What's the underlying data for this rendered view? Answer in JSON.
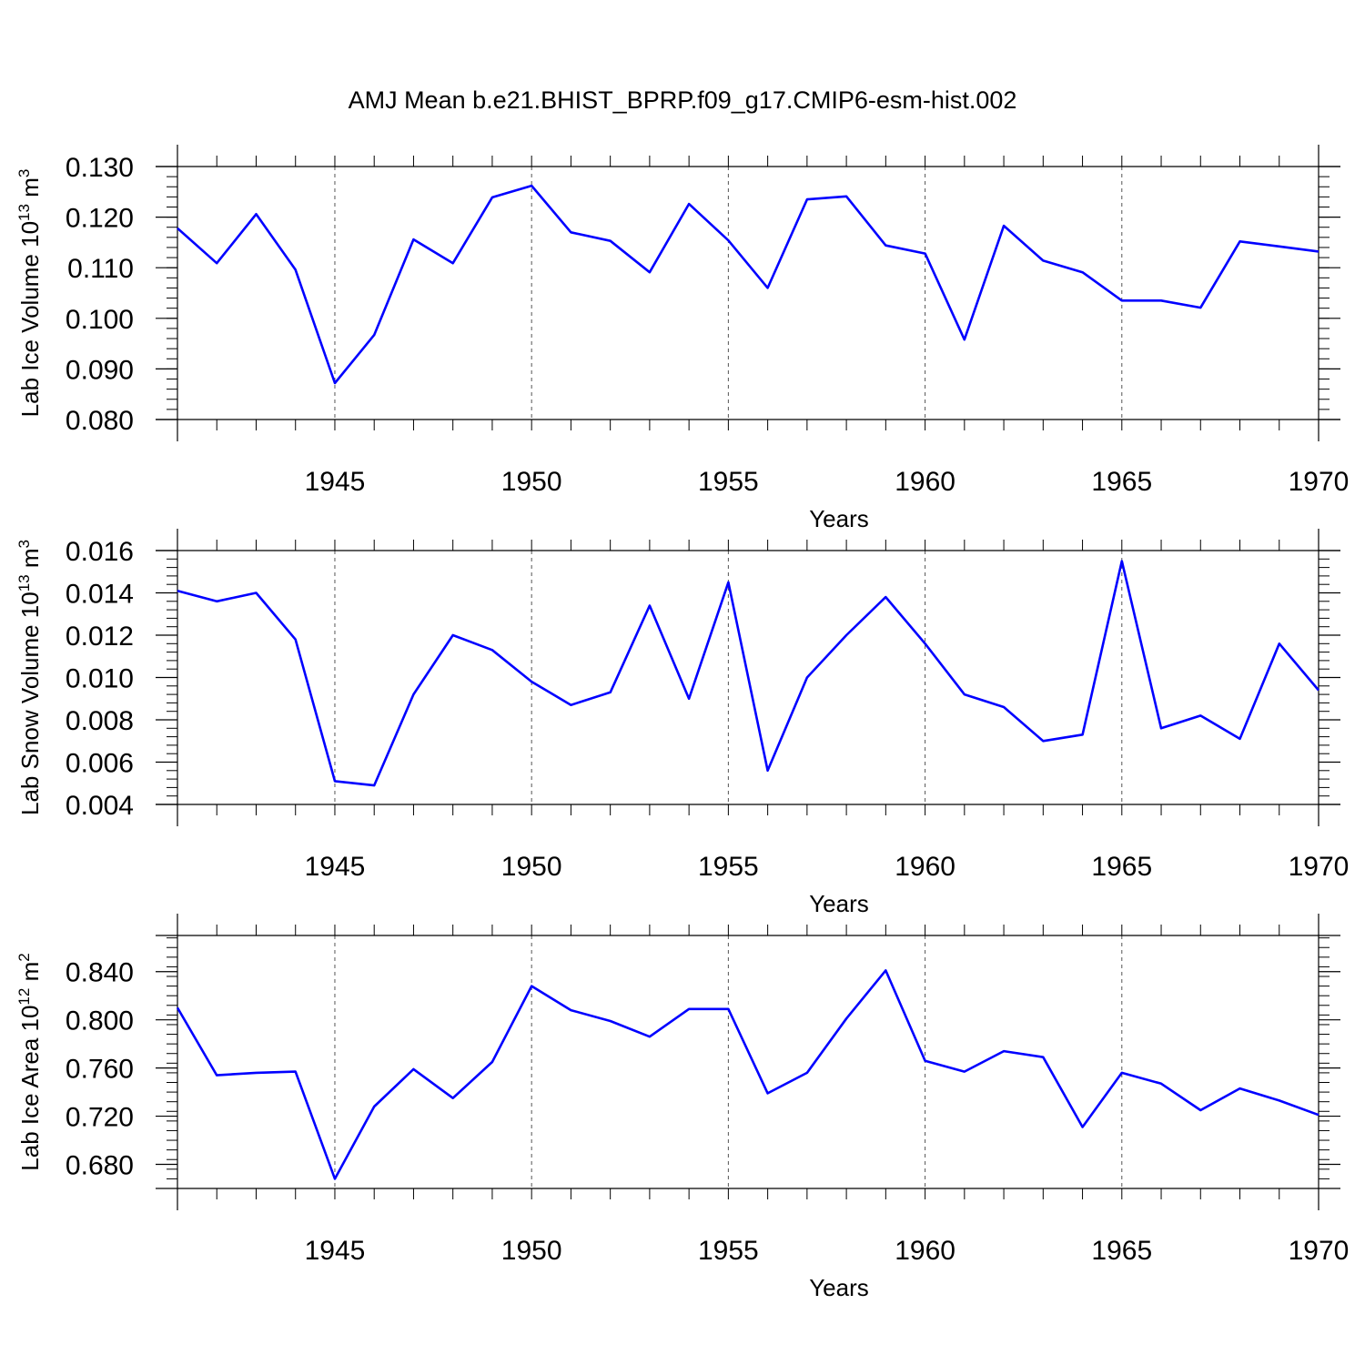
{
  "title": "AMJ Mean b.e21.BHIST_BPRP.f09_g17.CMIP6-esm-hist.002",
  "line_color": "#0000ff",
  "chart_data": [
    {
      "type": "line",
      "ylabel_main": "Lab Ice Volume 10",
      "ylabel_exp": "13",
      "ylabel_unit": " m",
      "ylabel_unit_exp": "3",
      "xlabel": "Years",
      "xlim": [
        1941,
        1970
      ],
      "ylim": [
        0.08,
        0.13
      ],
      "yticks": [
        0.08,
        0.09,
        0.1,
        0.11,
        0.12,
        0.13
      ],
      "ytick_labels": [
        "0.080",
        "0.090",
        "0.100",
        "0.110",
        "0.120",
        "0.130"
      ],
      "yminor_step": 0.002,
      "xticks": [
        1945,
        1950,
        1955,
        1960,
        1965,
        1970
      ],
      "xtick_labels": [
        "1945",
        "1950",
        "1955",
        "1960",
        "1965",
        "1970"
      ],
      "x": [
        1941,
        1942,
        1943,
        1944,
        1945,
        1946,
        1947,
        1948,
        1949,
        1950,
        1951,
        1952,
        1953,
        1954,
        1955,
        1956,
        1957,
        1958,
        1959,
        1960,
        1961,
        1962,
        1963,
        1964,
        1965,
        1966,
        1967,
        1968,
        1969,
        1970
      ],
      "y": [
        0.1178,
        0.1109,
        0.1206,
        0.1096,
        0.0872,
        0.0967,
        0.1156,
        0.1109,
        0.1239,
        0.1262,
        0.117,
        0.1153,
        0.1091,
        0.1226,
        0.1154,
        0.106,
        0.1235,
        0.1241,
        0.1144,
        0.1128,
        0.0958,
        0.1183,
        0.1114,
        0.1091,
        0.1035,
        0.1035,
        0.1021,
        0.1152,
        0.1142,
        0.1132
      ]
    },
    {
      "type": "line",
      "ylabel_main": "Lab Snow Volume 10",
      "ylabel_exp": "13",
      "ylabel_unit": " m",
      "ylabel_unit_exp": "3",
      "xlabel": "Years",
      "xlim": [
        1941,
        1970
      ],
      "ylim": [
        0.004,
        0.016
      ],
      "yticks": [
        0.004,
        0.006,
        0.008,
        0.01,
        0.012,
        0.014,
        0.016
      ],
      "ytick_labels": [
        "0.004",
        "0.006",
        "0.008",
        "0.010",
        "0.012",
        "0.014",
        "0.016"
      ],
      "yminor_step": 0.0004,
      "xticks": [
        1945,
        1950,
        1955,
        1960,
        1965,
        1970
      ],
      "xtick_labels": [
        "1945",
        "1950",
        "1955",
        "1960",
        "1965",
        "1970"
      ],
      "x": [
        1941,
        1942,
        1943,
        1944,
        1945,
        1946,
        1947,
        1948,
        1949,
        1950,
        1951,
        1952,
        1953,
        1954,
        1955,
        1956,
        1957,
        1958,
        1959,
        1960,
        1961,
        1962,
        1963,
        1964,
        1965,
        1966,
        1967,
        1968,
        1969,
        1970
      ],
      "y": [
        0.0141,
        0.0136,
        0.014,
        0.0118,
        0.0051,
        0.0049,
        0.0092,
        0.012,
        0.0113,
        0.0098,
        0.0087,
        0.0093,
        0.0134,
        0.009,
        0.0145,
        0.0056,
        0.01,
        0.012,
        0.0138,
        0.0116,
        0.0092,
        0.0086,
        0.007,
        0.0073,
        0.0155,
        0.0076,
        0.0082,
        0.0071,
        0.0116,
        0.0094
      ]
    },
    {
      "type": "line",
      "ylabel_main": "Lab Ice Area 10",
      "ylabel_exp": "12",
      "ylabel_unit": " m",
      "ylabel_unit_exp": "2",
      "xlabel": "Years",
      "xlim": [
        1941,
        1970
      ],
      "ylim": [
        0.66,
        0.87
      ],
      "yticks": [
        0.68,
        0.72,
        0.76,
        0.8,
        0.84
      ],
      "ytick_labels": [
        "0.680",
        "0.720",
        "0.760",
        "0.800",
        "0.840"
      ],
      "yminor_step": 0.008,
      "xticks": [
        1945,
        1950,
        1955,
        1960,
        1965,
        1970
      ],
      "xtick_labels": [
        "1945",
        "1950",
        "1955",
        "1960",
        "1965",
        "1970"
      ],
      "x": [
        1941,
        1942,
        1943,
        1944,
        1945,
        1946,
        1947,
        1948,
        1949,
        1950,
        1951,
        1952,
        1953,
        1954,
        1955,
        1956,
        1957,
        1958,
        1959,
        1960,
        1961,
        1962,
        1963,
        1964,
        1965,
        1966,
        1967,
        1968,
        1969,
        1970
      ],
      "y": [
        0.81,
        0.754,
        0.756,
        0.757,
        0.668,
        0.728,
        0.759,
        0.735,
        0.765,
        0.828,
        0.808,
        0.799,
        0.786,
        0.809,
        0.809,
        0.739,
        0.756,
        0.801,
        0.841,
        0.766,
        0.757,
        0.774,
        0.769,
        0.711,
        0.756,
        0.747,
        0.725,
        0.743,
        0.733,
        0.721
      ]
    }
  ]
}
